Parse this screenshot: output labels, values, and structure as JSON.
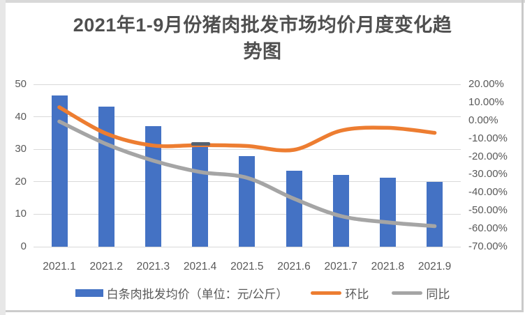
{
  "title": {
    "text": "2021年1-9月份猪肉批发市场均价月度变化趋势图",
    "lines": [
      "2021年1-9月份猪肉批发市场均价月度变化趋",
      "势图"
    ]
  },
  "legend": {
    "items": [
      {
        "label": "白条肉批发均价（单位：元/公斤）",
        "swatch": "bar"
      },
      {
        "label": "环比",
        "swatch": "line"
      },
      {
        "label": "同比",
        "swatch": "line"
      }
    ]
  },
  "chart_data": {
    "type": "bar",
    "subtype": "combo-bar-line-dual-axis",
    "title": "2021年1-9月份猪肉批发市场均价月度变化趋势图",
    "categories": [
      "2021.1",
      "2021.2",
      "2021.3",
      "2021.4",
      "2021.5",
      "2021.6",
      "2021.7",
      "2021.8",
      "2021.9"
    ],
    "series": [
      {
        "id": "price-bar",
        "name": "白条肉批发均价（单位：元/公斤）",
        "chart_type": "bar",
        "axis": "left",
        "unit": "元/公斤",
        "color": "#4472C4",
        "values": [
          46.5,
          43.2,
          37.2,
          32.0,
          27.9,
          23.3,
          22.2,
          21.3,
          19.9
        ]
      },
      {
        "id": "mom-line",
        "name": "环比",
        "chart_type": "line",
        "axis": "right",
        "unit": "%",
        "color": "#ED7D31",
        "values": [
          7.3,
          -7.3,
          -13.9,
          -13.7,
          -14.2,
          -16.3,
          -5.7,
          -4.1,
          -6.9
        ]
      },
      {
        "id": "yoy-line",
        "name": "同比",
        "chart_type": "line",
        "axis": "right",
        "unit": "%",
        "color": "#A5A5A5",
        "values": [
          -0.6,
          -13.1,
          -22.3,
          -28.6,
          -31.8,
          -43.4,
          -53.0,
          -56.5,
          -58.6
        ]
      }
    ],
    "left_axis": {
      "min": 0,
      "max": 50,
      "tick_labels": [
        "0",
        "10",
        "20",
        "30",
        "40",
        "50"
      ]
    },
    "right_axis": {
      "min": -70,
      "max": 20,
      "tick_labels": [
        "20.00%",
        "10.00%",
        "0.00%",
        "-10.00%",
        "-20.00%",
        "-30.00%",
        "-40.00%",
        "-50.00%",
        "-60.00%",
        "-70.00%"
      ]
    },
    "grid": true,
    "legend_position": "bottom"
  }
}
